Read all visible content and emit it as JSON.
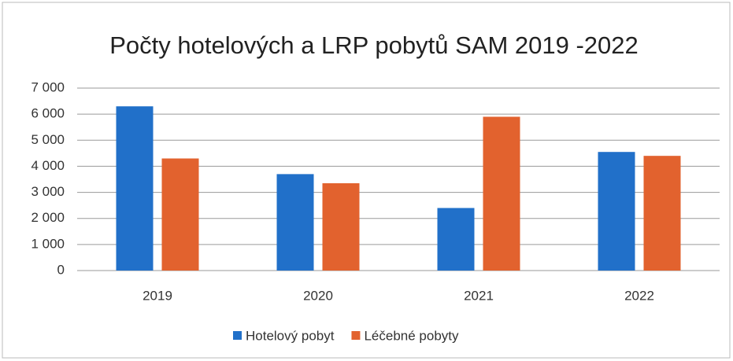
{
  "chart_data": {
    "type": "bar",
    "title": "Počty hotelových a LRP pobytů SAM  2019 -2022",
    "categories": [
      "2019",
      "2020",
      "2021",
      "2022"
    ],
    "series": [
      {
        "name": "Hotelový pobyt",
        "color": "#2170c9",
        "values": [
          6300,
          3700,
          2400,
          4550
        ]
      },
      {
        "name": "Léčebné pobyty",
        "color": "#e2622e",
        "values": [
          4300,
          3350,
          5900,
          4400
        ]
      }
    ],
    "ylim": [
      0,
      7000
    ],
    "yticks": [
      0,
      {
        "value": 1000,
        "label": "1 000"
      },
      {
        "value": 2000,
        "label": "2 000"
      },
      {
        "value": 3000,
        "label": "3 000"
      },
      {
        "value": 4000,
        "label": "4 000"
      },
      {
        "value": 5000,
        "label": "5 000"
      },
      {
        "value": 6000,
        "label": "6 000"
      },
      {
        "value": 7000,
        "label": "7 000"
      }
    ],
    "grid": true,
    "legend": "bottom"
  }
}
